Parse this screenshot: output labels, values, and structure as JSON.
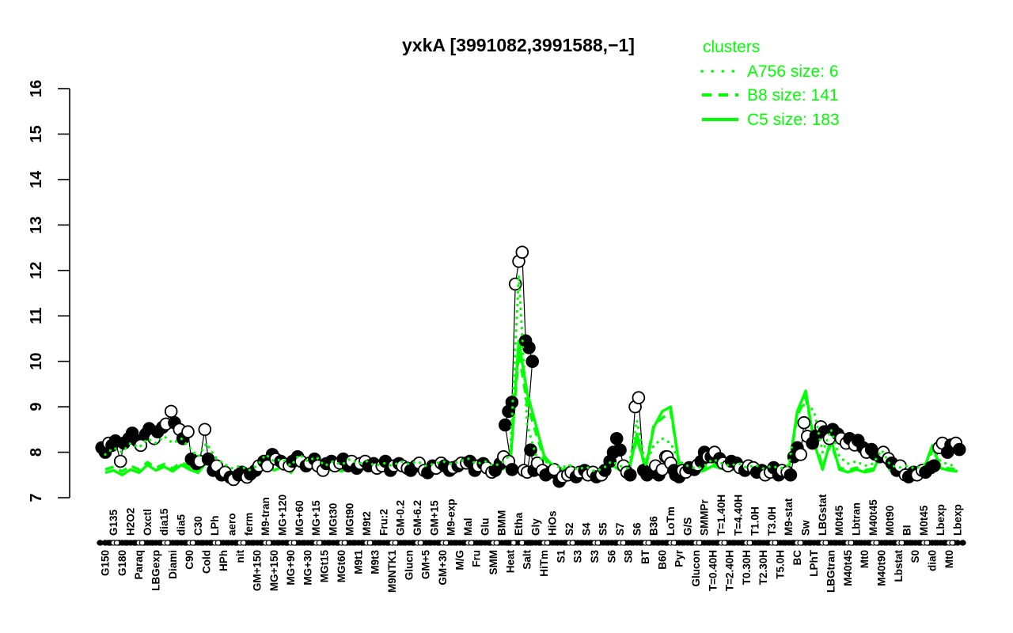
{
  "title": "yxkA [3991082,3991588,−1]",
  "legend": {
    "header": "clusters",
    "items": [
      {
        "label": "A756 size: 6",
        "style": "dotted"
      },
      {
        "label": "B8 size: 141",
        "style": "dashed"
      },
      {
        "label": "C5 size: 183",
        "style": "solid"
      }
    ]
  },
  "colors": {
    "cluster_green": "#00ff00",
    "point_filled": "#000000",
    "point_open_fill": "#ffffff",
    "line_black": "#000000",
    "background": "#ffffff"
  },
  "chart_data": {
    "type": "line",
    "title": "yxkA [3991082,3991588,−1]",
    "ylabel": "",
    "xlabel": "",
    "ylim": [
      7,
      16
    ],
    "yticks": [
      7,
      8,
      9,
      10,
      11,
      12,
      13,
      14,
      15,
      16
    ],
    "grid": false,
    "legend_position": "top-right",
    "label_sides": "alternate-bottom-first",
    "x_labels": [
      "G150",
      "G135",
      "G180",
      "H2O2",
      "Paraq",
      "Oxctl",
      "LBGexp",
      "dia15",
      "Diami",
      "dia5",
      "C90",
      "C30",
      "Cold",
      "LPh",
      "HPh",
      "aero",
      "nit",
      "ferm",
      "GM+150",
      "M9-tran",
      "MG+150",
      "MG+120",
      "MG+90",
      "MG+60",
      "MG+30",
      "MG+15",
      "MGt15",
      "MGt30",
      "MGt60",
      "MGt90",
      "M9t1",
      "M9t2",
      "M9t3",
      "Fru:2",
      "M9NTK1",
      "GM-0.2",
      "Glucn",
      "GM-6.2",
      "GM+5",
      "GM+15",
      "GM+30",
      "M9-exp",
      "M/G",
      "Mal",
      "Fru",
      "Glu",
      "SMM",
      "BMM",
      "Heat",
      "Etha",
      "Salt",
      "Gly",
      "HiTm",
      "HiOs",
      "S1",
      "S2",
      "S3",
      "S4",
      "S3",
      "S5",
      "S6",
      "S7",
      "S8",
      "S6",
      "BT",
      "B36",
      "B60",
      "LoTm",
      "Pyr",
      "G/S",
      "Glucon",
      "SMMPr",
      "T=0.40H",
      "T=1.40H",
      "T=2.40H",
      "T=4.40H",
      "T0.30H",
      "T1.0H",
      "T2.30H",
      "T3.0H",
      "T5.0H",
      "M9-stat",
      "BC",
      "Sw",
      "LPhT",
      "LBGstat",
      "LBGtran",
      "M0t45",
      "M40t45",
      "Lbtran",
      "Mt0",
      "M40t45",
      "M40t90",
      "M0t90",
      "Lbstat",
      "BI",
      "S0",
      "M0t45",
      "dia0",
      "Lbexp",
      "Mt0",
      "Lbexp"
    ],
    "black_points": [
      [
        [
          8.1,
          0
        ],
        [
          8.0,
          0
        ],
        [
          8.2,
          1
        ]
      ],
      [
        [
          8.15,
          0
        ],
        [
          8.25,
          0
        ]
      ],
      [
        [
          7.8,
          1
        ],
        [
          8.2,
          0
        ]
      ],
      [
        [
          8.3,
          0
        ],
        [
          8.42,
          0
        ]
      ],
      [
        [
          8.25,
          0
        ],
        [
          8.15,
          1
        ]
      ],
      [
        [
          8.4,
          0
        ],
        [
          8.52,
          0
        ]
      ],
      [
        [
          8.3,
          1
        ],
        [
          8.45,
          0
        ]
      ],
      [
        [
          8.55,
          0
        ],
        [
          8.62,
          1
        ]
      ],
      [
        [
          8.9,
          1
        ],
        [
          8.65,
          0
        ]
      ],
      [
        [
          8.5,
          1
        ],
        [
          8.3,
          0
        ]
      ],
      [
        [
          8.45,
          1
        ],
        [
          7.85,
          0
        ]
      ],
      [
        [
          7.75,
          0
        ],
        [
          7.8,
          1
        ]
      ],
      [
        [
          8.5,
          1
        ],
        [
          7.85,
          0
        ]
      ],
      [
        [
          7.6,
          0
        ],
        [
          7.7,
          1
        ]
      ],
      [
        [
          7.5,
          0
        ],
        [
          7.56,
          1
        ]
      ],
      [
        [
          7.45,
          0
        ],
        [
          7.4,
          1
        ]
      ],
      [
        [
          7.5,
          0
        ],
        [
          7.56,
          0
        ]
      ],
      [
        [
          7.45,
          1
        ],
        [
          7.52,
          0
        ]
      ],
      [
        [
          7.6,
          0
        ],
        [
          7.7,
          1
        ]
      ],
      [
        [
          7.8,
          0
        ],
        [
          7.7,
          1
        ]
      ],
      [
        [
          7.95,
          0
        ],
        [
          7.85,
          1
        ]
      ],
      [
        [
          7.8,
          0
        ],
        [
          7.74,
          1
        ]
      ],
      [
        [
          7.7,
          1
        ],
        [
          7.8,
          0
        ]
      ],
      [
        [
          7.9,
          0
        ],
        [
          7.8,
          1
        ]
      ],
      [
        [
          7.7,
          0
        ],
        [
          7.76,
          1
        ]
      ],
      [
        [
          7.85,
          0
        ],
        [
          7.7,
          1
        ]
      ],
      [
        [
          7.6,
          1
        ],
        [
          7.75,
          0
        ]
      ],
      [
        [
          7.8,
          0
        ],
        [
          7.7,
          1
        ]
      ],
      [
        [
          7.76,
          1
        ],
        [
          7.85,
          0
        ]
      ],
      [
        [
          7.7,
          0
        ],
        [
          7.8,
          1
        ]
      ],
      [
        [
          7.65,
          0
        ],
        [
          7.75,
          1
        ]
      ],
      [
        [
          7.8,
          1
        ],
        [
          7.7,
          0
        ]
      ],
      [
        [
          7.75,
          0
        ],
        [
          7.65,
          1
        ]
      ],
      [
        [
          7.7,
          1
        ],
        [
          7.8,
          0
        ]
      ],
      [
        [
          7.6,
          0
        ],
        [
          7.7,
          1
        ]
      ],
      [
        [
          7.75,
          0
        ],
        [
          7.7,
          1
        ]
      ],
      [
        [
          7.65,
          1
        ],
        [
          7.6,
          0
        ]
      ],
      [
        [
          7.7,
          0
        ],
        [
          7.76,
          1
        ]
      ],
      [
        [
          7.6,
          1
        ],
        [
          7.55,
          0
        ]
      ],
      [
        [
          7.7,
          0
        ],
        [
          7.65,
          1
        ]
      ],
      [
        [
          7.76,
          1
        ],
        [
          7.7,
          0
        ]
      ],
      [
        [
          7.6,
          0
        ],
        [
          7.66,
          1
        ]
      ],
      [
        [
          7.7,
          0
        ],
        [
          7.76,
          1
        ]
      ],
      [
        [
          7.76,
          1
        ],
        [
          7.8,
          0
        ]
      ],
      [
        [
          7.6,
          0
        ],
        [
          7.7,
          1
        ]
      ],
      [
        [
          7.75,
          0
        ],
        [
          7.66,
          1
        ]
      ],
      [
        [
          7.56,
          1
        ],
        [
          7.6,
          0
        ]
      ],
      [
        [
          7.75,
          0
        ],
        [
          7.9,
          1
        ]
      ],
      [
        [
          7.8,
          1
        ],
        [
          7.62,
          0
        ]
      ],
      [
        [
          8.6,
          0
        ],
        [
          8.9,
          0
        ],
        [
          9.1,
          0
        ],
        [
          11.7,
          1
        ],
        [
          12.2,
          1
        ],
        [
          12.4,
          1
        ],
        [
          10.45,
          0
        ],
        [
          10.3,
          0
        ],
        [
          10.0,
          0
        ]
      ],
      [
        [
          7.6,
          1
        ],
        [
          7.56,
          1
        ],
        [
          8.05,
          0
        ]
      ],
      [
        [
          7.6,
          0
        ],
        [
          7.76,
          1
        ]
      ],
      [
        [
          7.6,
          1
        ],
        [
          7.5,
          0
        ]
      ],
      [
        [
          7.56,
          0
        ],
        [
          7.62,
          1
        ]
      ],
      [
        [
          7.36,
          0
        ],
        [
          7.46,
          1
        ]
      ],
      [
        [
          7.5,
          1
        ],
        [
          7.56,
          1
        ]
      ],
      [
        [
          7.46,
          0
        ],
        [
          7.56,
          1
        ]
      ],
      [
        [
          7.6,
          0
        ],
        [
          7.5,
          1
        ]
      ],
      [
        [
          7.56,
          1
        ],
        [
          7.46,
          0
        ]
      ],
      [
        [
          7.5,
          1
        ],
        [
          7.6,
          0
        ]
      ],
      [
        [
          7.8,
          0
        ],
        [
          8.0,
          0
        ]
      ],
      [
        [
          8.3,
          0
        ],
        [
          8.05,
          0
        ],
        [
          7.7,
          1
        ]
      ],
      [
        [
          7.56,
          1
        ],
        [
          7.5,
          0
        ]
      ],
      [
        [
          9.0,
          1
        ],
        [
          9.2,
          1
        ]
      ],
      [
        [
          7.6,
          0
        ],
        [
          7.5,
          0
        ]
      ],
      [
        [
          7.56,
          0
        ],
        [
          7.7,
          1
        ]
      ],
      [
        [
          7.5,
          0
        ],
        [
          7.62,
          1
        ],
        [
          7.9,
          1
        ]
      ],
      [
        [
          7.9,
          1
        ],
        [
          7.76,
          1
        ],
        [
          7.6,
          0
        ]
      ],
      [
        [
          7.5,
          0
        ],
        [
          7.46,
          0
        ],
        [
          7.6,
          1
        ]
      ],
      [
        [
          7.56,
          1
        ],
        [
          7.66,
          0
        ]
      ],
      [
        [
          7.62,
          0
        ],
        [
          7.72,
          1
        ]
      ],
      [
        [
          7.8,
          0
        ],
        [
          8.0,
          0
        ],
        [
          7.9,
          1
        ]
      ],
      [
        [
          7.9,
          0
        ],
        [
          8.0,
          1
        ]
      ],
      [
        [
          7.86,
          0
        ],
        [
          7.76,
          1
        ]
      ],
      [
        [
          7.7,
          1
        ],
        [
          7.8,
          0
        ]
      ],
      [
        [
          7.76,
          0
        ],
        [
          7.66,
          1
        ]
      ],
      [
        [
          7.6,
          0
        ],
        [
          7.7,
          1
        ]
      ],
      [
        [
          7.66,
          1
        ],
        [
          7.56,
          0
        ]
      ],
      [
        [
          7.6,
          0
        ],
        [
          7.5,
          1
        ]
      ],
      [
        [
          7.56,
          1
        ],
        [
          7.66,
          0
        ]
      ],
      [
        [
          7.5,
          0
        ],
        [
          7.6,
          1
        ]
      ],
      [
        [
          7.56,
          1
        ],
        [
          7.5,
          0
        ]
      ],
      [
        [
          7.9,
          0
        ],
        [
          8.1,
          0
        ],
        [
          7.95,
          1
        ]
      ],
      [
        [
          8.65,
          1
        ],
        [
          8.35,
          1
        ]
      ],
      [
        [
          8.2,
          0
        ],
        [
          8.36,
          0
        ]
      ],
      [
        [
          8.56,
          1
        ],
        [
          8.45,
          0
        ]
      ],
      [
        [
          8.3,
          1
        ],
        [
          8.5,
          0
        ]
      ],
      [
        [
          8.4,
          0
        ],
        [
          8.3,
          1
        ]
      ],
      [
        [
          8.2,
          1
        ],
        [
          8.3,
          0
        ]
      ],
      [
        [
          8.16,
          1
        ],
        [
          8.26,
          0
        ]
      ],
      [
        [
          8.1,
          0
        ],
        [
          8.0,
          1
        ]
      ],
      [
        [
          8.06,
          0
        ],
        [
          7.96,
          0
        ]
      ],
      [
        [
          7.9,
          0
        ],
        [
          8.0,
          1
        ]
      ],
      [
        [
          7.86,
          1
        ],
        [
          7.76,
          0
        ]
      ],
      [
        [
          7.6,
          0
        ],
        [
          7.7,
          1
        ]
      ],
      [
        [
          7.5,
          1
        ],
        [
          7.46,
          0
        ]
      ],
      [
        [
          7.56,
          0
        ],
        [
          7.5,
          1
        ]
      ],
      [
        [
          7.6,
          1
        ],
        [
          7.56,
          0
        ]
      ],
      [
        [
          7.66,
          0
        ],
        [
          7.7,
          0
        ]
      ],
      [
        [
          8.1,
          1
        ],
        [
          8.2,
          1
        ]
      ],
      [
        [
          8.0,
          0
        ],
        [
          8.16,
          0
        ]
      ],
      [
        [
          8.2,
          1
        ],
        [
          8.06,
          0
        ]
      ]
    ],
    "series": [
      {
        "name": "A756 size: 6",
        "size": 6,
        "linetype": "dotted",
        "values": [
          7.95,
          8.1,
          8.0,
          8.2,
          8.1,
          8.3,
          8.2,
          8.35,
          8.2,
          8.3,
          8.1,
          7.9,
          8.2,
          7.9,
          7.75,
          7.65,
          7.7,
          7.6,
          7.7,
          7.95,
          7.8,
          7.85,
          7.7,
          7.95,
          7.8,
          7.9,
          7.7,
          7.8,
          7.72,
          7.85,
          7.75,
          7.8,
          7.7,
          7.76,
          7.7,
          7.8,
          7.74,
          7.8,
          7.7,
          7.75,
          7.8,
          7.74,
          7.8,
          7.86,
          7.74,
          7.8,
          7.7,
          7.76,
          7.95,
          11.9,
          8.6,
          7.95,
          7.8,
          7.74,
          7.66,
          7.72,
          7.62,
          7.68,
          7.58,
          7.64,
          7.8,
          7.7,
          7.64,
          8.7,
          7.72,
          8.15,
          8.3,
          8.2,
          7.8,
          7.7,
          7.64,
          7.7,
          7.85,
          7.76,
          7.7,
          7.76,
          7.66,
          7.72,
          7.64,
          7.7,
          7.64,
          7.72,
          8.85,
          9.1,
          8.9,
          8.0,
          8.5,
          7.9,
          7.75,
          7.8,
          7.7,
          7.75,
          8.05,
          7.72,
          7.66,
          7.7,
          7.64,
          7.72,
          8.0,
          7.8,
          7.72,
          7.7
        ]
      },
      {
        "name": "B8 size: 141",
        "size": 141,
        "linetype": "dashed",
        "values": [
          7.62,
          7.68,
          7.58,
          7.7,
          7.62,
          7.78,
          7.66,
          7.74,
          7.64,
          7.78,
          7.68,
          7.6,
          7.84,
          7.66,
          7.56,
          7.5,
          7.58,
          7.5,
          7.6,
          7.86,
          7.66,
          7.72,
          7.6,
          7.86,
          7.68,
          7.76,
          7.6,
          7.7,
          7.62,
          7.74,
          7.64,
          7.7,
          7.6,
          7.66,
          7.6,
          7.7,
          7.64,
          7.7,
          7.6,
          7.64,
          7.7,
          7.64,
          7.7,
          7.76,
          7.64,
          7.7,
          7.6,
          7.66,
          7.78,
          10.2,
          9.05,
          8.45,
          7.85,
          7.72,
          7.64,
          7.7,
          7.6,
          7.66,
          7.55,
          7.6,
          7.76,
          7.64,
          7.6,
          8.3,
          7.66,
          8.6,
          8.75,
          8.9,
          7.76,
          7.64,
          7.6,
          7.64,
          7.74,
          7.68,
          7.64,
          7.7,
          7.6,
          7.66,
          7.6,
          7.64,
          7.6,
          7.66,
          8.8,
          9.2,
          8.3,
          7.68,
          8.2,
          7.66,
          7.6,
          7.66,
          7.6,
          7.64,
          7.95,
          7.64,
          7.6,
          7.64,
          7.6,
          7.66,
          8.05,
          7.7,
          7.64,
          7.62
        ]
      },
      {
        "name": "C5 size: 183",
        "size": 183,
        "linetype": "solid",
        "values": [
          7.55,
          7.6,
          7.5,
          7.62,
          7.55,
          7.72,
          7.6,
          7.68,
          7.58,
          7.72,
          7.62,
          7.55,
          7.78,
          7.6,
          7.5,
          7.45,
          7.52,
          7.45,
          7.55,
          7.82,
          7.6,
          7.68,
          7.55,
          7.82,
          7.62,
          7.72,
          7.55,
          7.65,
          7.58,
          7.7,
          7.6,
          7.66,
          7.55,
          7.62,
          7.55,
          7.66,
          7.6,
          7.66,
          7.55,
          7.6,
          7.66,
          7.6,
          7.66,
          7.72,
          7.6,
          7.66,
          7.55,
          7.62,
          7.72,
          10.45,
          9.3,
          8.62,
          7.92,
          7.7,
          7.6,
          7.66,
          7.55,
          7.62,
          7.5,
          7.56,
          7.72,
          7.6,
          7.55,
          8.4,
          7.62,
          8.55,
          8.9,
          9.0,
          7.72,
          7.6,
          7.55,
          7.6,
          7.7,
          7.64,
          7.6,
          7.66,
          7.56,
          7.62,
          7.55,
          7.6,
          7.55,
          7.62,
          8.9,
          9.35,
          8.2,
          7.62,
          8.3,
          7.62,
          7.56,
          7.62,
          7.56,
          7.6,
          8.0,
          7.6,
          7.55,
          7.6,
          7.55,
          7.62,
          8.15,
          7.65,
          7.6,
          7.58
        ]
      }
    ]
  }
}
